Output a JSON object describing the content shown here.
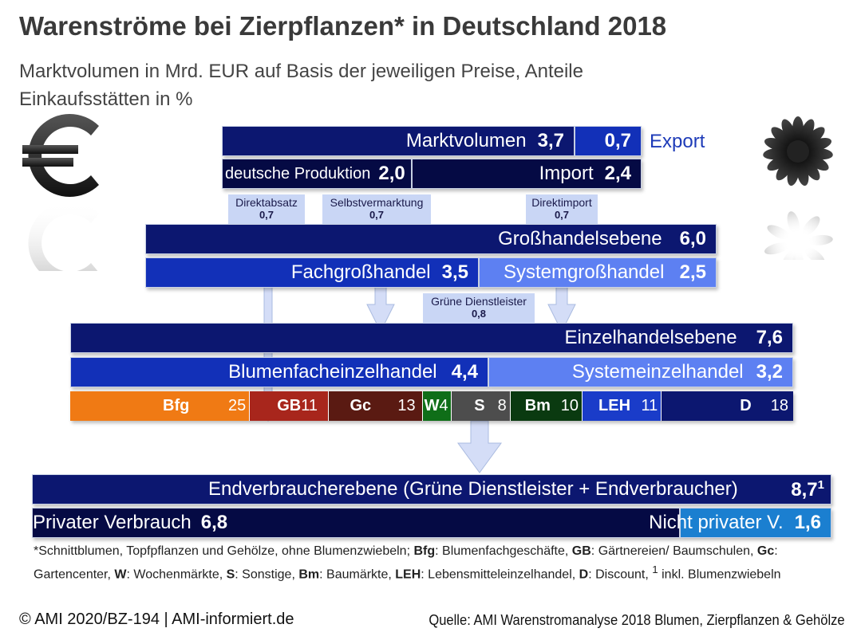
{
  "title": "Warenströme bei Zierpflanzen* in Deutschland 2018",
  "subtitle": "Marktvolumen in Mrd. EUR auf Basis der jeweiligen Preise, Anteile Einkaufsstätten in %",
  "top": {
    "marktvolumen_label": "Marktvolumen",
    "marktvolumen_value": "3,7",
    "export_value": "0,7",
    "export_label": "Export",
    "produktion_label": "deutsche Produktion",
    "produktion_value": "2,0",
    "import_label": "Import",
    "import_value": "2,4"
  },
  "tags": {
    "direktabsatz": {
      "label": "Direktabsatz",
      "value": "0,7"
    },
    "selbstvermarktung": {
      "label": "Selbstvermarktung",
      "value": "0,7"
    },
    "direktimport": {
      "label": "Direktimport",
      "value": "0,7"
    },
    "gruene": {
      "label": "Grüne Dienstleister",
      "value": "0,8"
    }
  },
  "grosshandel": {
    "label": "Großhandelsebene",
    "value": "6,0",
    "fach_label": "Fachgroßhandel",
    "fach_value": "3,5",
    "system_label": "Systemgroßhandel",
    "system_value": "2,5"
  },
  "einzelhandel": {
    "label": "Einzelhandelsebene",
    "value": "7,6",
    "blumen_label": "Blumenfacheinzelhandel",
    "blumen_value": "4,4",
    "system_label": "Systemeinzelhandel",
    "system_value": "3,2"
  },
  "shares": [
    {
      "key": "Bfg",
      "value": "25",
      "color": "#f07a14"
    },
    {
      "key": "GB",
      "value": "11",
      "color": "#a8261c"
    },
    {
      "key": "Gc",
      "value": "13",
      "color": "#5a1a12"
    },
    {
      "key": "W",
      "value": "4",
      "color": "#0f6e18"
    },
    {
      "key": "S",
      "value": "8",
      "color": "#4d4d4d"
    },
    {
      "key": "Bm",
      "value": "10",
      "color": "#0a3a10"
    },
    {
      "key": "LEH",
      "value": "11",
      "color": "#1a3cc9"
    },
    {
      "key": "D",
      "value": "18",
      "color": "#0c1770"
    }
  ],
  "end": {
    "label": "Endverbraucherebene (Grüne Dienstleister + Endverbraucher)",
    "value": "8,7",
    "sup": "1",
    "privat_label": "Privater Verbrauch",
    "privat_value": "6,8",
    "nicht_label": "Nicht privater V.",
    "nicht_value": "1,6"
  },
  "footnote": {
    "star": "*Schnittblumen, Topfpflanzen und Gehölze, ohne Blumenzwiebeln;",
    "bfg_k": "Bfg",
    "bfg_v": ": Blumenfachgeschäfte,",
    "gb_k": "GB",
    "gb_v": ": Gärtnereien/ Baumschulen,",
    "gc_k": "Gc",
    "gc_v": ": Gartencenter,",
    "w_k": "W",
    "w_v": ": Wochenmärkte,",
    "s_k": "S",
    "s_v": ": Sonstige,",
    "bm_k": "Bm",
    "bm_v": ": Baumärkte,",
    "leh_k": "LEH",
    "leh_v": ": Lebensmitteleinzelhandel,",
    "d_k": "D",
    "d_v": ": Discount,",
    "one_sup": "1",
    "one_v": "inkl. Blumenzwiebeln"
  },
  "copyright": "© AMI 2020/BZ-194 | AMI-informiert.de",
  "source": "Quelle: AMI Warenstromanalyse 2018 Blumen, Zierpflanzen & Gehölze",
  "icons": {
    "left": "euro-icon",
    "right": "flower-icon"
  }
}
